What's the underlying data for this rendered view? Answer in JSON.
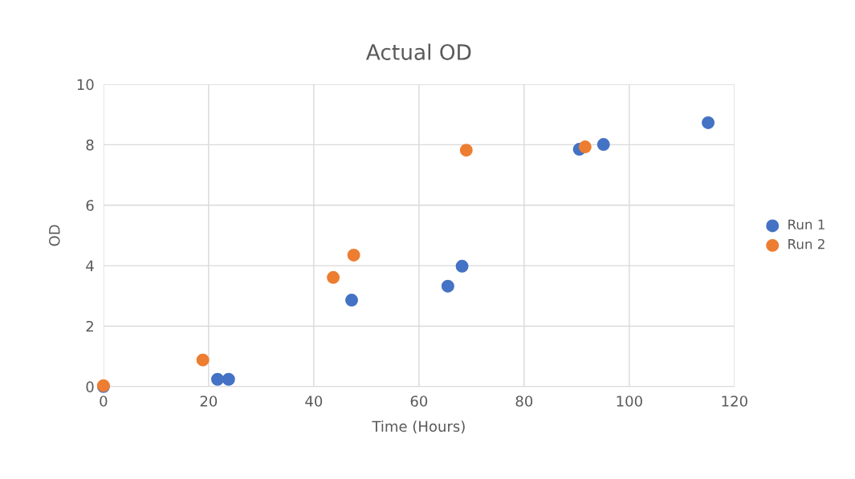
{
  "chart_data": {
    "type": "scatter",
    "title": "Actual OD",
    "xlabel": "Time (Hours)",
    "ylabel": "OD",
    "series": [
      {
        "name": "Run 1",
        "color": "#4472c4",
        "x": [
          0,
          21.7,
          23.8,
          47.2,
          65.5,
          68.2,
          90.5,
          95.1,
          115
        ],
        "values": [
          0,
          0.24,
          0.24,
          2.86,
          3.32,
          3.98,
          7.85,
          8.01,
          8.73
        ]
      },
      {
        "name": "Run 2",
        "color": "#ed7d31",
        "x": [
          0,
          18.9,
          43.7,
          47.6,
          69.0,
          91.6
        ],
        "values": [
          0.03,
          0.88,
          3.61,
          4.35,
          7.82,
          7.93
        ]
      }
    ],
    "xlim": [
      0,
      120
    ],
    "xticks": [
      0,
      20,
      40,
      60,
      80,
      100,
      120
    ],
    "ylim": [
      0,
      10
    ],
    "yticks": [
      0,
      2,
      4,
      6,
      8,
      10
    ],
    "grid": true,
    "legend": "right",
    "marker": "circle"
  }
}
